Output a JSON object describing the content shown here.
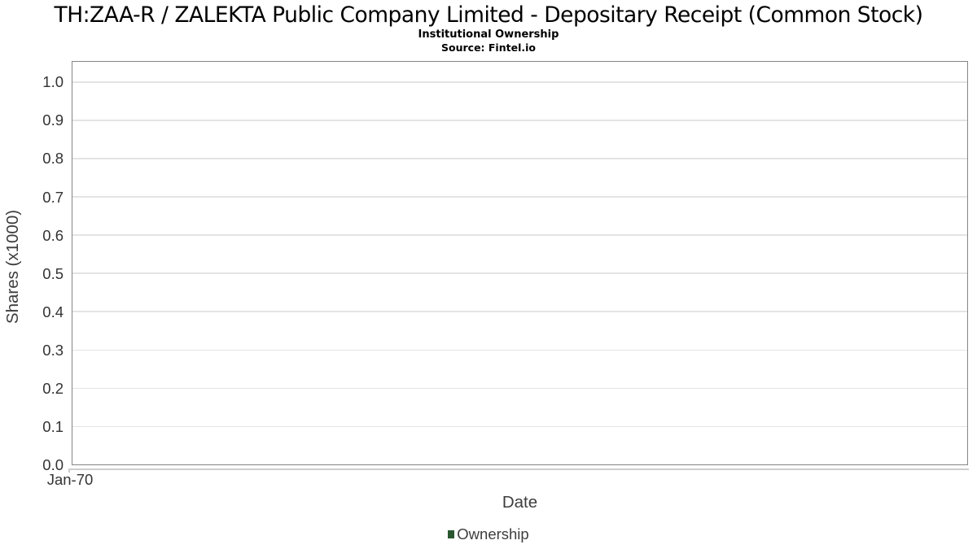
{
  "header": {
    "title": "TH:ZAA-R / ZALEKTA Public Company Limited - Depositary Receipt (Common Stock)",
    "subtitle": "Institutional Ownership",
    "source": "Source: Fintel.io"
  },
  "chart_data": {
    "type": "line",
    "title": "Institutional Ownership",
    "xlabel": "Date",
    "ylabel": "Shares (x1000)",
    "x_tick_labels": [
      "Jan-70"
    ],
    "y_tick_labels": [
      "0.0",
      "0.1",
      "0.2",
      "0.3",
      "0.4",
      "0.5",
      "0.6",
      "0.7",
      "0.8",
      "0.9",
      "1.0"
    ],
    "y_tick_values": [
      0,
      0.1,
      0.2,
      0.3,
      0.4,
      0.5,
      0.6,
      0.7,
      0.8,
      0.9,
      1.0
    ],
    "ylim": [
      0,
      1.056
    ],
    "grid": true,
    "legend": {
      "position": "bottom",
      "entries": [
        {
          "label": "Ownership",
          "color": "#2a5730"
        }
      ]
    },
    "series": [
      {
        "name": "Ownership",
        "color": "#2a5730",
        "x": [],
        "values": []
      }
    ]
  },
  "colors": {
    "background": "#ffffff",
    "plot_border": "#858585",
    "gridline": "#e4e4e4",
    "tick_label": "#333333",
    "axis_label": "#3d3d3d",
    "title_text": "#000000",
    "axis_line": "#cdcdcd",
    "legend_marker": "#2a5730"
  }
}
